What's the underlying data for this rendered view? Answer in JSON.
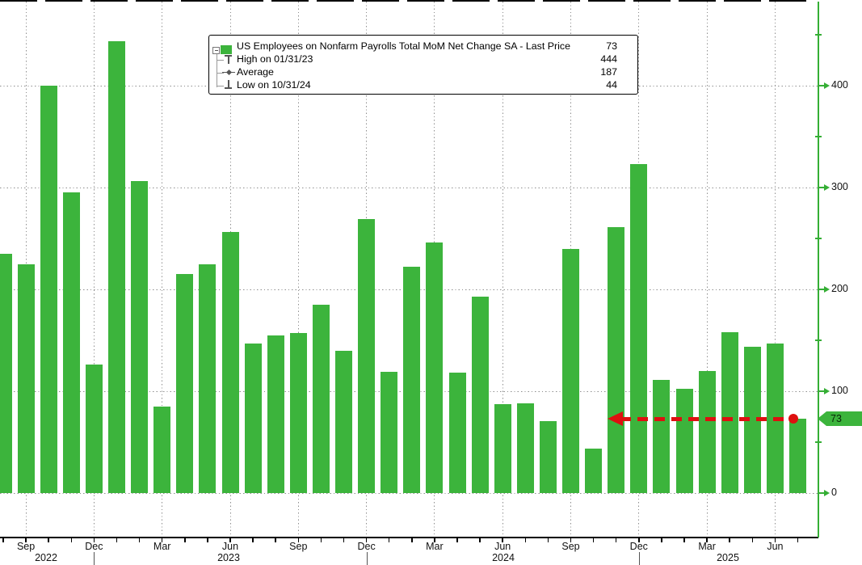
{
  "colors": {
    "bar_green": "#3CB43C",
    "axis_green": "#35AE35",
    "arrow_red": "#DE1010",
    "grid_grey": "#8D8D8D",
    "text": "#111111"
  },
  "legend": {
    "rows": [
      {
        "id": "series",
        "label": "US Employees on Nonfarm Payrolls Total MoM Net Change SA - Last Price",
        "value": "73"
      },
      {
        "id": "high",
        "label": "High on 01/31/23",
        "value": "444"
      },
      {
        "id": "average",
        "label": "Average",
        "value": "187"
      },
      {
        "id": "low",
        "label": "Low on 10/31/24",
        "value": "44"
      }
    ]
  },
  "right_axis_badge": "73",
  "chart_data": {
    "type": "bar",
    "title": "US Employees on Nonfarm Payrolls Total MoM Net Change SA",
    "legend_position": "top-center",
    "grid": "dotted",
    "last_price": 73,
    "high": {
      "date": "01/31/23",
      "value": 444
    },
    "average": 187,
    "low": {
      "date": "10/31/24",
      "value": 44
    },
    "x": [
      "Aug 2022",
      "Sep 2022",
      "Oct 2022",
      "Nov 2022",
      "Dec 2022",
      "Jan 2023",
      "Feb 2023",
      "Mar 2023",
      "Apr 2023",
      "May 2023",
      "Jun 2023",
      "Jul 2023",
      "Aug 2023",
      "Sep 2023",
      "Oct 2023",
      "Nov 2023",
      "Dec 2023",
      "Jan 2024",
      "Feb 2024",
      "Mar 2024",
      "Apr 2024",
      "May 2024",
      "Jun 2024",
      "Jul 2024",
      "Aug 2024",
      "Sep 2024",
      "Oct 2024",
      "Nov 2024",
      "Dec 2024",
      "Jan 2025",
      "Feb 2025",
      "Mar 2025",
      "Apr 2025",
      "May 2025",
      "Jun 2025",
      "Jul 2025"
    ],
    "values": [
      235,
      225,
      400,
      295,
      126,
      444,
      306,
      85,
      215,
      225,
      256,
      147,
      155,
      157,
      185,
      140,
      269,
      119,
      222,
      246,
      118,
      193,
      87,
      88,
      71,
      240,
      44,
      261,
      323,
      111,
      102,
      120,
      158,
      144,
      147,
      73
    ],
    "yaxis": {
      "labeled_ticks": [
        0,
        100,
        200,
        300,
        400
      ],
      "minor_ticks": [
        50,
        150,
        250,
        350,
        450
      ],
      "side": "right"
    },
    "xaxis": {
      "quarter_tick_labels": [
        "Sep",
        "Dec",
        "Mar",
        "Jun",
        "Sep",
        "Dec",
        "Mar",
        "Jun",
        "Sep",
        "Dec",
        "Mar",
        "Jun"
      ],
      "year_labels": [
        "2022",
        "2023",
        "2024",
        "2025"
      ]
    },
    "annotation": {
      "type": "dashed-arrow",
      "direction": "left",
      "at_value": 73,
      "from_month": "Jul 2025"
    }
  }
}
